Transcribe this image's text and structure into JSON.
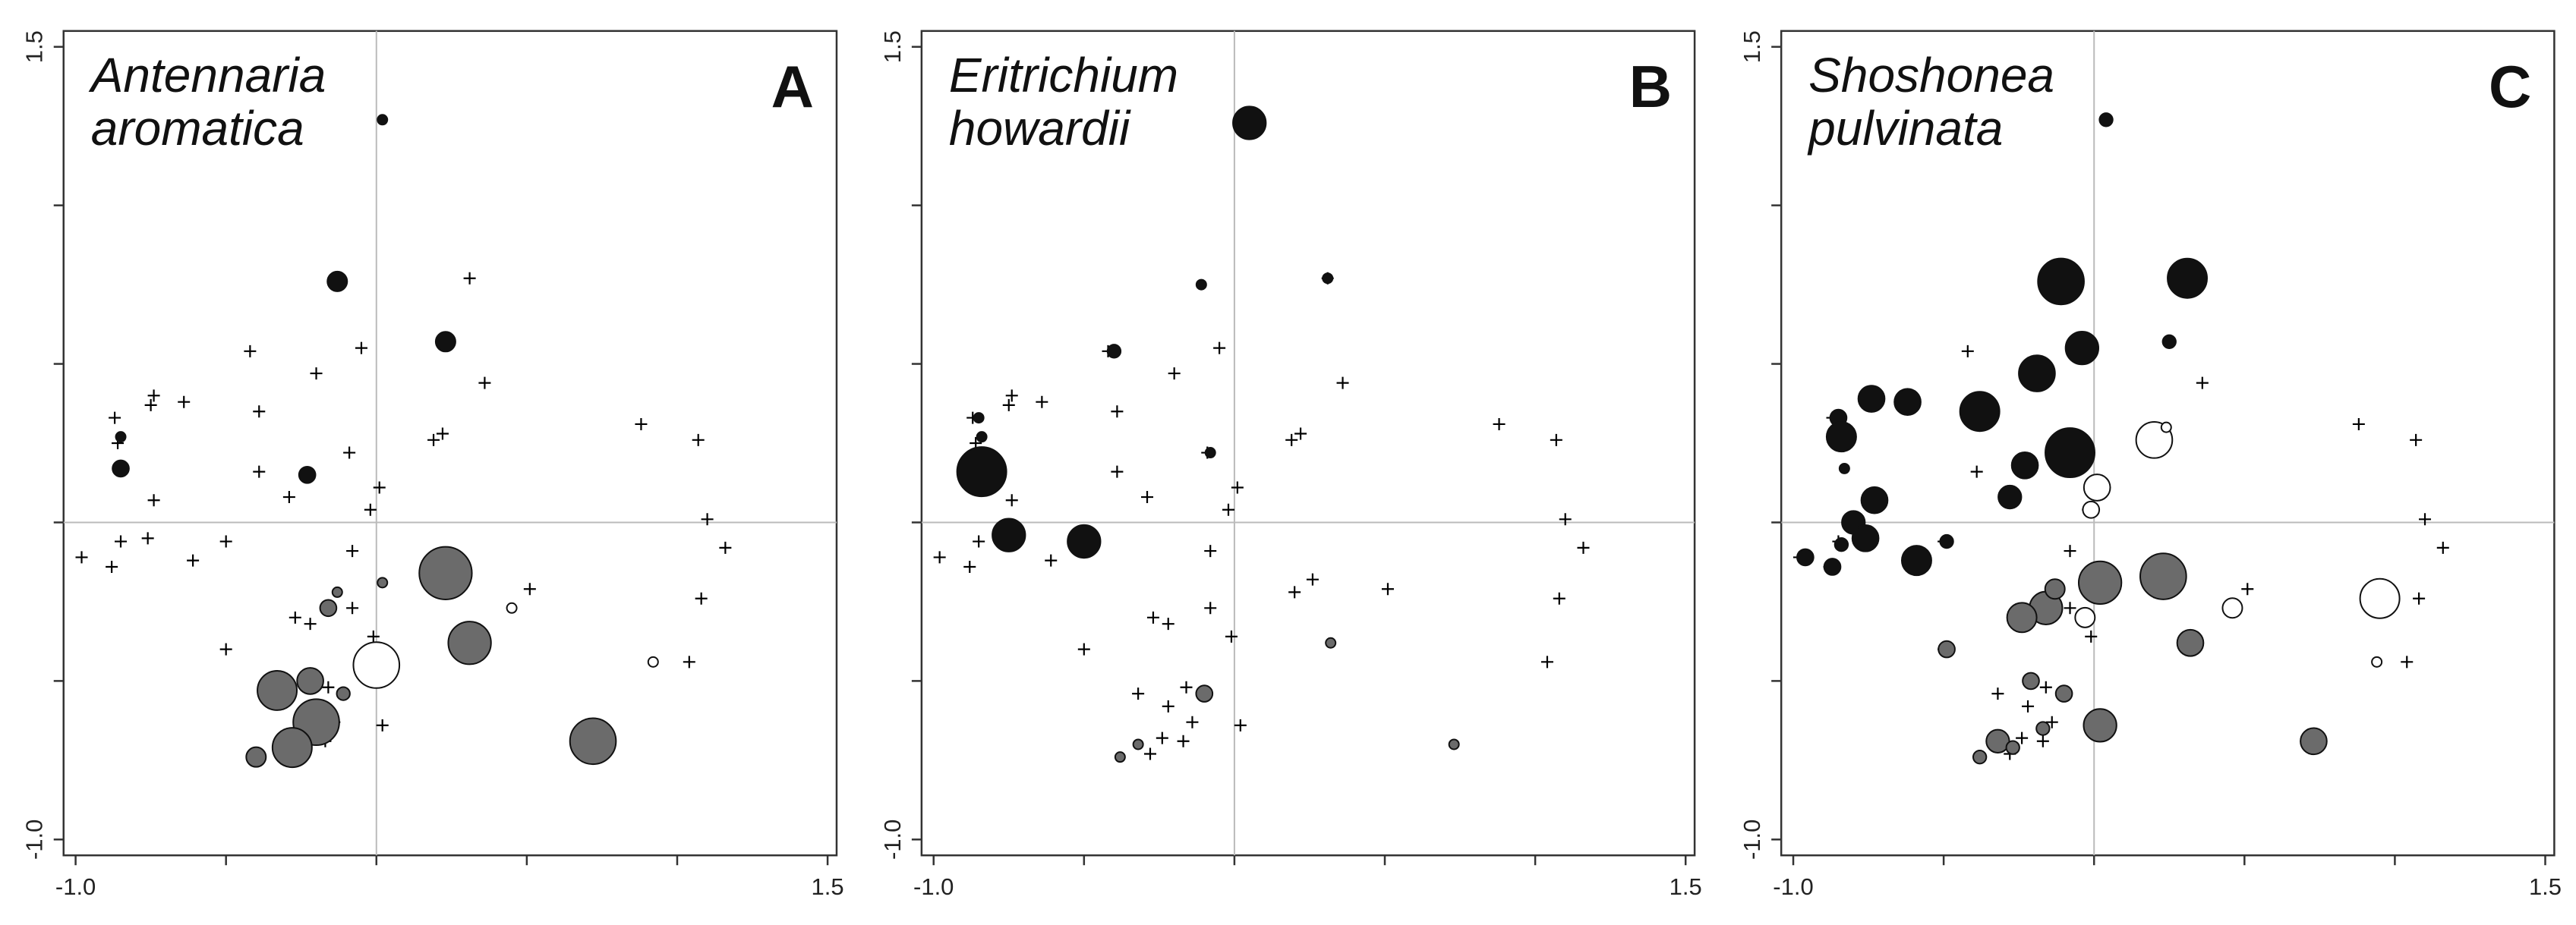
{
  "chart_data": [
    {
      "type": "scatter",
      "title": [
        "Antennaria",
        "aromatica"
      ],
      "panel_label": "A",
      "xlim": [
        -1.04,
        1.53
      ],
      "ylim": [
        -1.05,
        1.55
      ],
      "xticks": [
        {
          "value": -1,
          "label": "-1.0"
        },
        {
          "value": 1.5,
          "label": "1.5"
        }
      ],
      "yticks": [
        {
          "value": -1,
          "label": "-1.0"
        },
        {
          "value": 1.5,
          "label": "1.5"
        }
      ],
      "minor_ticks": [
        -0.5,
        0,
        0.5,
        1
      ],
      "reference_lines": {
        "x": 0,
        "y": 0
      },
      "series": [
        {
          "marker": "cross",
          "color": "#000000",
          "x": [
            0.31,
            -0.42,
            -0.05,
            -0.2,
            0.36,
            -0.74,
            -0.64,
            -0.75,
            -0.39,
            -0.87,
            0.19,
            0.22,
            0.88,
            1.07,
            -0.09,
            -0.86,
            -0.39,
            0.01,
            -0.29,
            -0.74,
            -0.02,
            1.1,
            -0.85,
            -0.76,
            -0.5,
            -0.08,
            -0.98,
            -0.88,
            -0.61,
            1.16,
            0.26,
            0.2,
            0.51,
            1.08,
            -0.27,
            -0.22,
            -0.08,
            -0.01,
            -0.5,
            1.04,
            -0.32,
            -0.16,
            -0.22,
            -0.14,
            0.02,
            -0.24,
            -0.17,
            -0.28
          ],
          "values": [
            0.77,
            0.54,
            0.55,
            0.47,
            0.44,
            0.4,
            0.38,
            0.37,
            0.35,
            0.33,
            0.26,
            0.28,
            0.31,
            0.26,
            0.22,
            0.25,
            0.16,
            0.11,
            0.08,
            0.07,
            0.04,
            0.01,
            -0.06,
            -0.05,
            -0.06,
            -0.09,
            -0.11,
            -0.14,
            -0.12,
            -0.08,
            -0.18,
            -0.22,
            -0.21,
            -0.24,
            -0.3,
            -0.32,
            -0.27,
            -0.36,
            -0.4,
            -0.44,
            -0.54,
            -0.52,
            -0.58,
            -0.63,
            -0.64,
            -0.68,
            -0.69,
            -0.73
          ]
        },
        {
          "marker": "circle",
          "color": "#111111",
          "x": [
            0.02,
            -0.13,
            0.23,
            -0.85,
            -0.85,
            -0.23
          ],
          "values": [
            1.27,
            0.76,
            0.57,
            0.27,
            0.17,
            0.15
          ],
          "sizes": [
            3,
            6,
            6,
            3,
            5,
            5
          ]
        },
        {
          "marker": "circle",
          "color": "#6b6b6b",
          "x": [
            0.23,
            0.31,
            -0.33,
            -0.22,
            -0.2,
            -0.28,
            -0.4,
            -0.11,
            -0.16,
            -0.13,
            0.02,
            0.72
          ],
          "values": [
            -0.16,
            -0.38,
            -0.53,
            -0.5,
            -0.63,
            -0.71,
            -0.74,
            -0.54,
            -0.27,
            -0.22,
            -0.19,
            -0.69
          ],
          "sizes": [
            16,
            13,
            12,
            8,
            14,
            12,
            6,
            4,
            5,
            3,
            3,
            14
          ]
        },
        {
          "marker": "circle",
          "color": "#ffffff",
          "x": [
            0.0,
            0.45,
            0.92
          ],
          "values": [
            -0.45,
            -0.27,
            -0.44
          ],
          "sizes": [
            14,
            3,
            3
          ]
        }
      ]
    },
    {
      "type": "scatter",
      "title": [
        "Eritrichium",
        "howardii"
      ],
      "panel_label": "B",
      "xlim": [
        -1.04,
        1.53
      ],
      "ylim": [
        -1.05,
        1.55
      ],
      "xticks": [
        {
          "value": -1,
          "label": "-1.0"
        },
        {
          "value": 1.5,
          "label": "1.5"
        }
      ],
      "yticks": [
        {
          "value": -1,
          "label": "-1.0"
        },
        {
          "value": 1.5,
          "label": "1.5"
        }
      ],
      "minor_ticks": [
        -0.5,
        0,
        0.5,
        1
      ],
      "reference_lines": {
        "x": 0,
        "y": 0
      },
      "series": [
        {
          "marker": "cross",
          "color": "#000000",
          "x": [
            0.31,
            -0.42,
            -0.05,
            -0.2,
            0.36,
            -0.74,
            -0.64,
            -0.75,
            -0.39,
            -0.87,
            0.19,
            0.22,
            0.88,
            1.07,
            -0.09,
            -0.86,
            -0.39,
            0.01,
            -0.29,
            -0.74,
            -0.02,
            1.1,
            -0.85,
            -0.76,
            -0.5,
            -0.08,
            -0.98,
            -0.88,
            -0.61,
            1.16,
            0.26,
            0.2,
            0.51,
            1.08,
            -0.27,
            -0.22,
            -0.08,
            -0.01,
            -0.5,
            1.04,
            -0.32,
            -0.16,
            -0.22,
            -0.14,
            0.02,
            -0.24,
            -0.17,
            -0.28
          ],
          "values": [
            0.77,
            0.54,
            0.55,
            0.47,
            0.44,
            0.4,
            0.38,
            0.37,
            0.35,
            0.33,
            0.26,
            0.28,
            0.31,
            0.26,
            0.22,
            0.25,
            0.16,
            0.11,
            0.08,
            0.07,
            0.04,
            0.01,
            -0.06,
            -0.05,
            -0.06,
            -0.09,
            -0.11,
            -0.14,
            -0.12,
            -0.08,
            -0.18,
            -0.22,
            -0.21,
            -0.24,
            -0.3,
            -0.32,
            -0.27,
            -0.36,
            -0.4,
            -0.44,
            -0.54,
            -0.52,
            -0.58,
            -0.63,
            -0.64,
            -0.68,
            -0.69,
            -0.73
          ]
        },
        {
          "marker": "circle",
          "color": "#111111",
          "x": [
            0.05,
            -0.11,
            0.31,
            -0.4,
            -0.08,
            -0.85,
            -0.84,
            -0.84,
            -0.75,
            -0.5
          ],
          "values": [
            1.26,
            0.75,
            0.77,
            0.54,
            0.22,
            0.33,
            0.27,
            0.16,
            -0.04,
            -0.06
          ],
          "sizes": [
            10,
            3,
            3,
            4,
            3,
            3,
            3,
            15,
            10,
            10
          ]
        },
        {
          "marker": "circle",
          "color": "#6b6b6b",
          "x": [
            -0.1,
            0.32,
            0.73,
            -0.32,
            -0.38
          ],
          "values": [
            -0.54,
            -0.38,
            -0.7,
            -0.7,
            -0.74
          ],
          "sizes": [
            5,
            3,
            3,
            3,
            3
          ]
        }
      ]
    },
    {
      "type": "scatter",
      "title": [
        "Shoshonea",
        "pulvinata"
      ],
      "panel_label": "C",
      "xlim": [
        -1.04,
        1.53
      ],
      "ylim": [
        -1.05,
        1.55
      ],
      "xticks": [
        {
          "value": -1,
          "label": "-1.0"
        },
        {
          "value": 1.5,
          "label": "1.5"
        }
      ],
      "yticks": [
        {
          "value": -1,
          "label": "-1.0"
        },
        {
          "value": 1.5,
          "label": "1.5"
        }
      ],
      "minor_ticks": [
        -0.5,
        0,
        0.5,
        1
      ],
      "reference_lines": {
        "x": 0,
        "y": 0
      },
      "series": [
        {
          "marker": "cross",
          "color": "#000000",
          "x": [
            0.31,
            -0.42,
            -0.05,
            -0.2,
            0.36,
            -0.74,
            -0.64,
            -0.75,
            -0.39,
            -0.87,
            0.19,
            0.22,
            0.88,
            1.07,
            -0.09,
            -0.86,
            -0.39,
            0.01,
            -0.29,
            -0.74,
            -0.02,
            1.1,
            -0.85,
            -0.76,
            -0.5,
            -0.08,
            -0.98,
            -0.88,
            -0.61,
            1.16,
            0.26,
            0.2,
            0.51,
            1.08,
            -0.27,
            -0.22,
            -0.08,
            -0.01,
            -0.5,
            1.04,
            -0.32,
            -0.16,
            -0.22,
            -0.14,
            0.02,
            -0.24,
            -0.17,
            -0.28
          ],
          "values": [
            0.77,
            0.54,
            0.55,
            0.47,
            0.44,
            0.4,
            0.38,
            0.37,
            0.35,
            0.33,
            0.26,
            0.28,
            0.31,
            0.26,
            0.22,
            0.25,
            0.16,
            0.11,
            0.08,
            0.07,
            0.04,
            0.01,
            -0.06,
            -0.05,
            -0.06,
            -0.09,
            -0.11,
            -0.14,
            -0.12,
            -0.08,
            -0.18,
            -0.22,
            -0.21,
            -0.24,
            -0.3,
            -0.32,
            -0.27,
            -0.36,
            -0.4,
            -0.44,
            -0.54,
            -0.52,
            -0.58,
            -0.63,
            -0.64,
            -0.68,
            -0.69,
            -0.73
          ]
        },
        {
          "marker": "circle",
          "color": "#111111",
          "x": [
            0.04,
            -0.11,
            0.31,
            0.25,
            -0.04,
            -0.19,
            -0.38,
            -0.08,
            -0.74,
            -0.62,
            -0.85,
            -0.84,
            -0.83,
            -0.23,
            -0.28,
            -0.73,
            -0.8,
            -0.76,
            -0.84,
            -0.96,
            -0.87,
            -0.59,
            -0.49
          ],
          "values": [
            1.27,
            0.76,
            0.77,
            0.57,
            0.55,
            0.47,
            0.35,
            0.22,
            0.39,
            0.38,
            0.33,
            0.27,
            0.17,
            0.18,
            0.08,
            0.07,
            0.0,
            -0.05,
            -0.07,
            -0.11,
            -0.14,
            -0.12,
            -0.06
          ],
          "sizes": [
            4,
            14,
            12,
            4,
            10,
            11,
            12,
            15,
            8,
            8,
            5,
            9,
            3,
            8,
            7,
            8,
            7,
            8,
            4,
            5,
            5,
            9,
            4
          ]
        },
        {
          "marker": "circle",
          "color": "#6b6b6b",
          "x": [
            0.23,
            0.02,
            0.32,
            -0.16,
            -0.24,
            -0.13,
            -0.49,
            -0.21,
            -0.1,
            0.02,
            -0.17,
            -0.32,
            -0.27,
            -0.38,
            0.73
          ],
          "values": [
            -0.17,
            -0.19,
            -0.38,
            -0.27,
            -0.3,
            -0.21,
            -0.4,
            -0.5,
            -0.54,
            -0.64,
            -0.65,
            -0.69,
            -0.71,
            -0.74,
            -0.69
          ],
          "sizes": [
            14,
            13,
            8,
            10,
            9,
            6,
            5,
            5,
            5,
            10,
            4,
            7,
            4,
            4,
            8
          ]
        },
        {
          "marker": "circle",
          "color": "#ffffff",
          "x": [
            0.2,
            0.24,
            0.01,
            -0.01,
            -0.03,
            0.46,
            0.95,
            0.94
          ],
          "values": [
            0.26,
            0.3,
            0.11,
            0.04,
            -0.3,
            -0.27,
            -0.24,
            -0.44
          ],
          "sizes": [
            11,
            3,
            8,
            5,
            6,
            6,
            12,
            3
          ]
        }
      ]
    }
  ]
}
